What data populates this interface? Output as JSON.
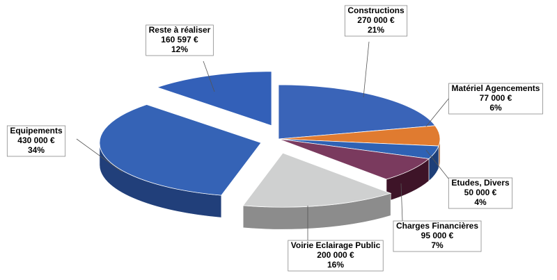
{
  "chart_data": {
    "type": "pie3d",
    "categories": [
      "Constructions",
      "Matériel Agencements",
      "Etudes, Divers",
      "Charges Financières",
      "Voirie Eclairage Public",
      "Equipements",
      "Reste à réaliser"
    ],
    "values": [
      270000,
      77000,
      50000,
      95000,
      200000,
      430000,
      160597
    ],
    "value_labels": [
      "270 000 €",
      "77 000 €",
      "50 000 €",
      "95 000 €",
      "200 000 €",
      "430 000 €",
      "160 597 €"
    ],
    "percents": [
      21,
      6,
      4,
      7,
      16,
      34,
      12
    ],
    "percent_labels": [
      "21%",
      "6%",
      "4%",
      "7%",
      "16%",
      "34%",
      "12%"
    ],
    "colors": [
      "#3a64b8",
      "#e07b30",
      "#2f62b4",
      "#7a3a5e",
      "#cfd0d0",
      "#3563b6",
      "#3360b8"
    ],
    "side_colors": [
      "#24457f",
      "#9a4e18",
      "#1e3f78",
      "#3e1428",
      "#8c8c8c",
      "#213f7a",
      "#213f7a"
    ],
    "exploded": [
      false,
      false,
      false,
      false,
      true,
      true,
      true
    ]
  }
}
